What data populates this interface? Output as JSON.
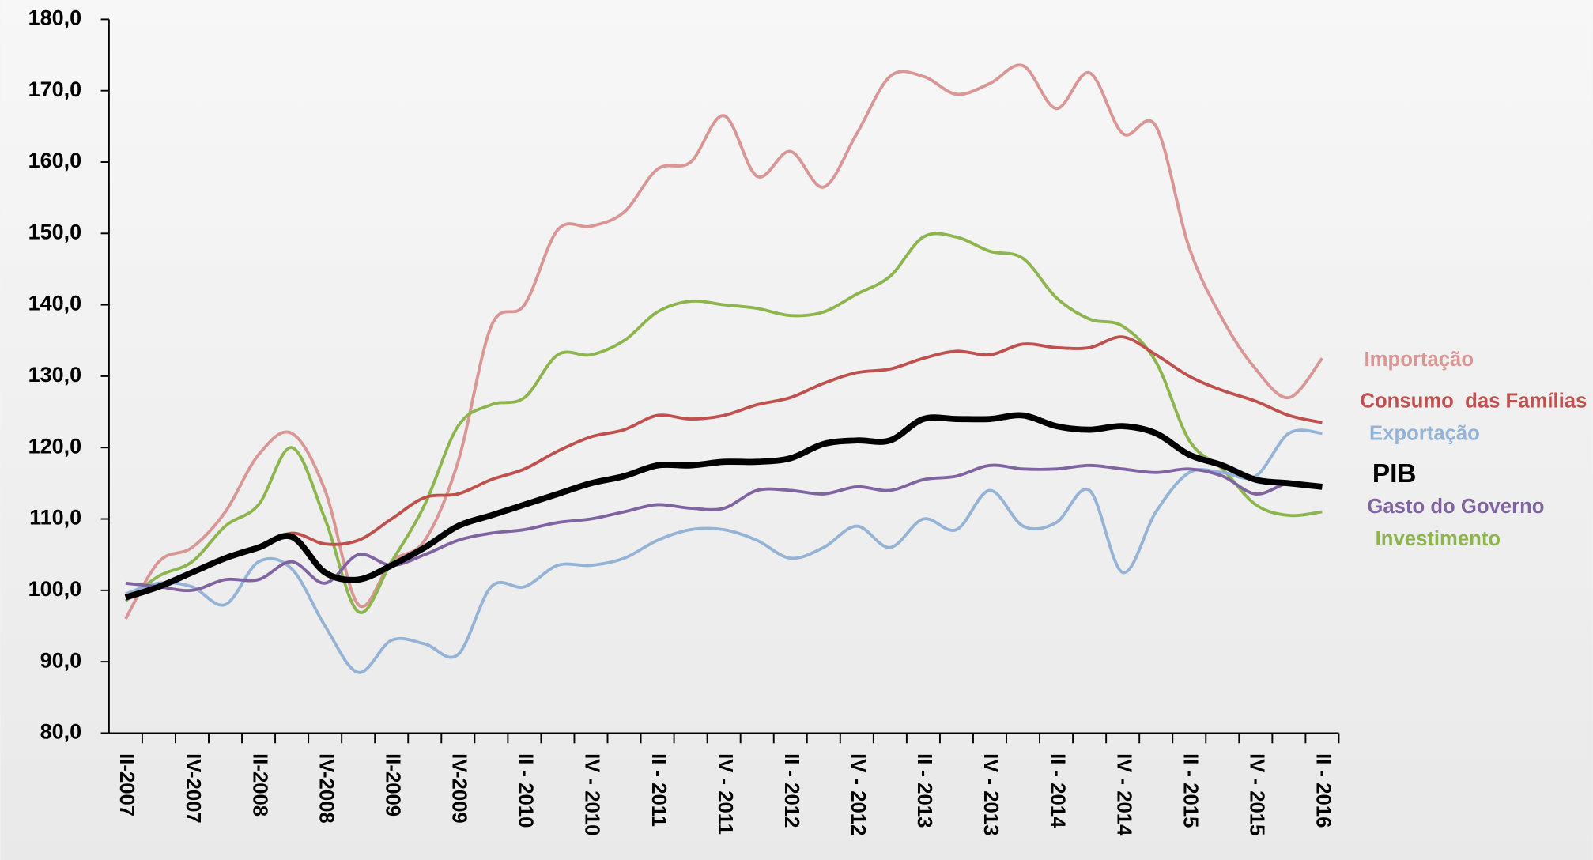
{
  "chart_data": {
    "type": "line",
    "categories": [
      "II-2007",
      null,
      "IV-2007",
      null,
      "II-2008",
      null,
      "IV-2008",
      null,
      "II-2009",
      null,
      "IV-2009",
      null,
      "II - 2010",
      null,
      "IV - 2010",
      null,
      "II - 2011",
      null,
      "IV - 2011",
      null,
      "II - 2012",
      null,
      "IV - 2012",
      null,
      "II - 2013",
      null,
      "IV - 2013",
      null,
      "II - 2014",
      null,
      "IV - 2014",
      null,
      "II - 2015",
      null,
      "IV - 2015",
      null,
      "II - 2016"
    ],
    "ylim": [
      80,
      180
    ],
    "yticks": [
      {
        "value": 80,
        "label": "80,0"
      },
      {
        "value": 90,
        "label": "90,0"
      },
      {
        "value": 100,
        "label": "100,0"
      },
      {
        "value": 110,
        "label": "110,0"
      },
      {
        "value": 120,
        "label": "120,0"
      },
      {
        "value": 130,
        "label": "130,0"
      },
      {
        "value": 140,
        "label": "140,0"
      },
      {
        "value": 150,
        "label": "150,0"
      },
      {
        "value": 160,
        "label": "160,0"
      },
      {
        "value": 170,
        "label": "170,0"
      },
      {
        "value": 180,
        "label": "180,0"
      }
    ],
    "grid": false,
    "series": [
      {
        "name": "Importação",
        "color": "#d99694",
        "values": [
          96,
          104,
          106,
          111,
          119,
          122,
          114,
          98,
          104,
          107,
          118,
          137,
          140,
          150.5,
          151,
          153,
          159,
          160,
          166.5,
          158,
          161.5,
          156.5,
          164,
          172,
          172,
          169.5,
          171,
          173.5,
          167.5,
          172.5,
          164,
          165,
          148,
          138,
          131,
          127,
          132.5
        ]
      },
      {
        "name": "Consumo  das Famílias",
        "color": "#c0504d",
        "values": [
          99.5,
          100.5,
          102.5,
          104.5,
          106,
          108,
          106.5,
          107,
          110,
          113,
          113.5,
          115.5,
          117,
          119.5,
          121.5,
          122.5,
          124.5,
          124,
          124.5,
          126,
          127,
          129,
          130.5,
          131,
          132.5,
          133.5,
          133,
          134.5,
          134,
          134,
          135.5,
          133,
          130,
          128,
          126.5,
          124.5,
          123.5
        ]
      },
      {
        "name": "Exportação",
        "color": "#95b3d7",
        "values": [
          99.5,
          101,
          100.5,
          98,
          104,
          103,
          95,
          88.5,
          93,
          92.5,
          91,
          100.5,
          100.5,
          103.5,
          103.5,
          104.5,
          107,
          108.5,
          108.5,
          107,
          104.5,
          106,
          109,
          106,
          110,
          108.5,
          114,
          109,
          109.5,
          114,
          102.5,
          111,
          116.5,
          116.5,
          116,
          122,
          122
        ]
      },
      {
        "name": "PIB",
        "color": "#000000",
        "values": [
          99,
          100.5,
          102.5,
          104.5,
          106,
          107.5,
          102.5,
          101.5,
          103.5,
          106,
          109,
          110.5,
          112,
          113.5,
          115,
          116,
          117.5,
          117.5,
          118,
          118,
          118.5,
          120.5,
          121,
          121,
          124,
          124,
          124,
          124.5,
          123,
          122.5,
          123,
          122,
          119,
          117.5,
          115.5,
          115,
          114.5
        ]
      },
      {
        "name": "Gasto do Governo",
        "color": "#8064a2",
        "values": [
          101,
          100.5,
          100,
          101.5,
          101.5,
          104,
          101,
          105,
          103.5,
          105,
          107,
          108,
          108.5,
          109.5,
          110,
          111,
          112,
          111.5,
          111.5,
          114,
          114,
          113.5,
          114.5,
          114,
          115.5,
          116,
          117.5,
          117,
          117,
          117.5,
          117,
          116.5,
          117,
          116,
          113.5,
          115,
          114.5
        ]
      },
      {
        "name": "Investimento",
        "color": "#8db54e",
        "values": [
          98.5,
          102,
          104,
          109,
          112,
          120,
          110,
          97,
          104,
          112,
          123,
          126,
          127,
          133,
          133,
          135,
          139,
          140.5,
          140,
          139.5,
          138.5,
          139,
          141.5,
          144,
          149.5,
          149.5,
          147.5,
          146.5,
          141,
          138,
          137,
          132,
          121,
          117,
          112,
          110.5,
          111
        ]
      }
    ]
  }
}
